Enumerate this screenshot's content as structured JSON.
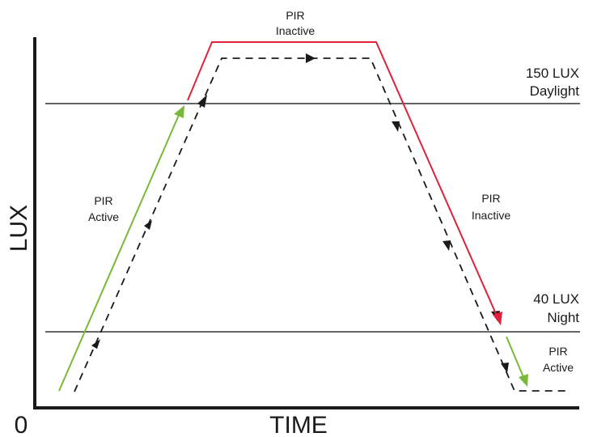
{
  "axes": {
    "y_label": "LUX",
    "x_label": "TIME",
    "origin_label": "0"
  },
  "thresholds": {
    "daylight": {
      "value": "150 LUX",
      "name": "Daylight"
    },
    "night": {
      "value": "40 LUX",
      "name": "Night"
    }
  },
  "labels": {
    "top": {
      "line1": "PIR",
      "line2": "Inactive"
    },
    "rising": {
      "line1": "PIR",
      "line2": "Active"
    },
    "falling": {
      "line1": "PIR",
      "line2": "Inactive"
    },
    "bottom": {
      "line1": "PIR",
      "line2": "Active"
    }
  },
  "colors": {
    "axis": "#1a1a1a",
    "threshold_line": "#333333",
    "pir_active": "#7ab83a",
    "pir_inactive": "#e0203c",
    "lux_curve": "#1a1a1a"
  }
}
